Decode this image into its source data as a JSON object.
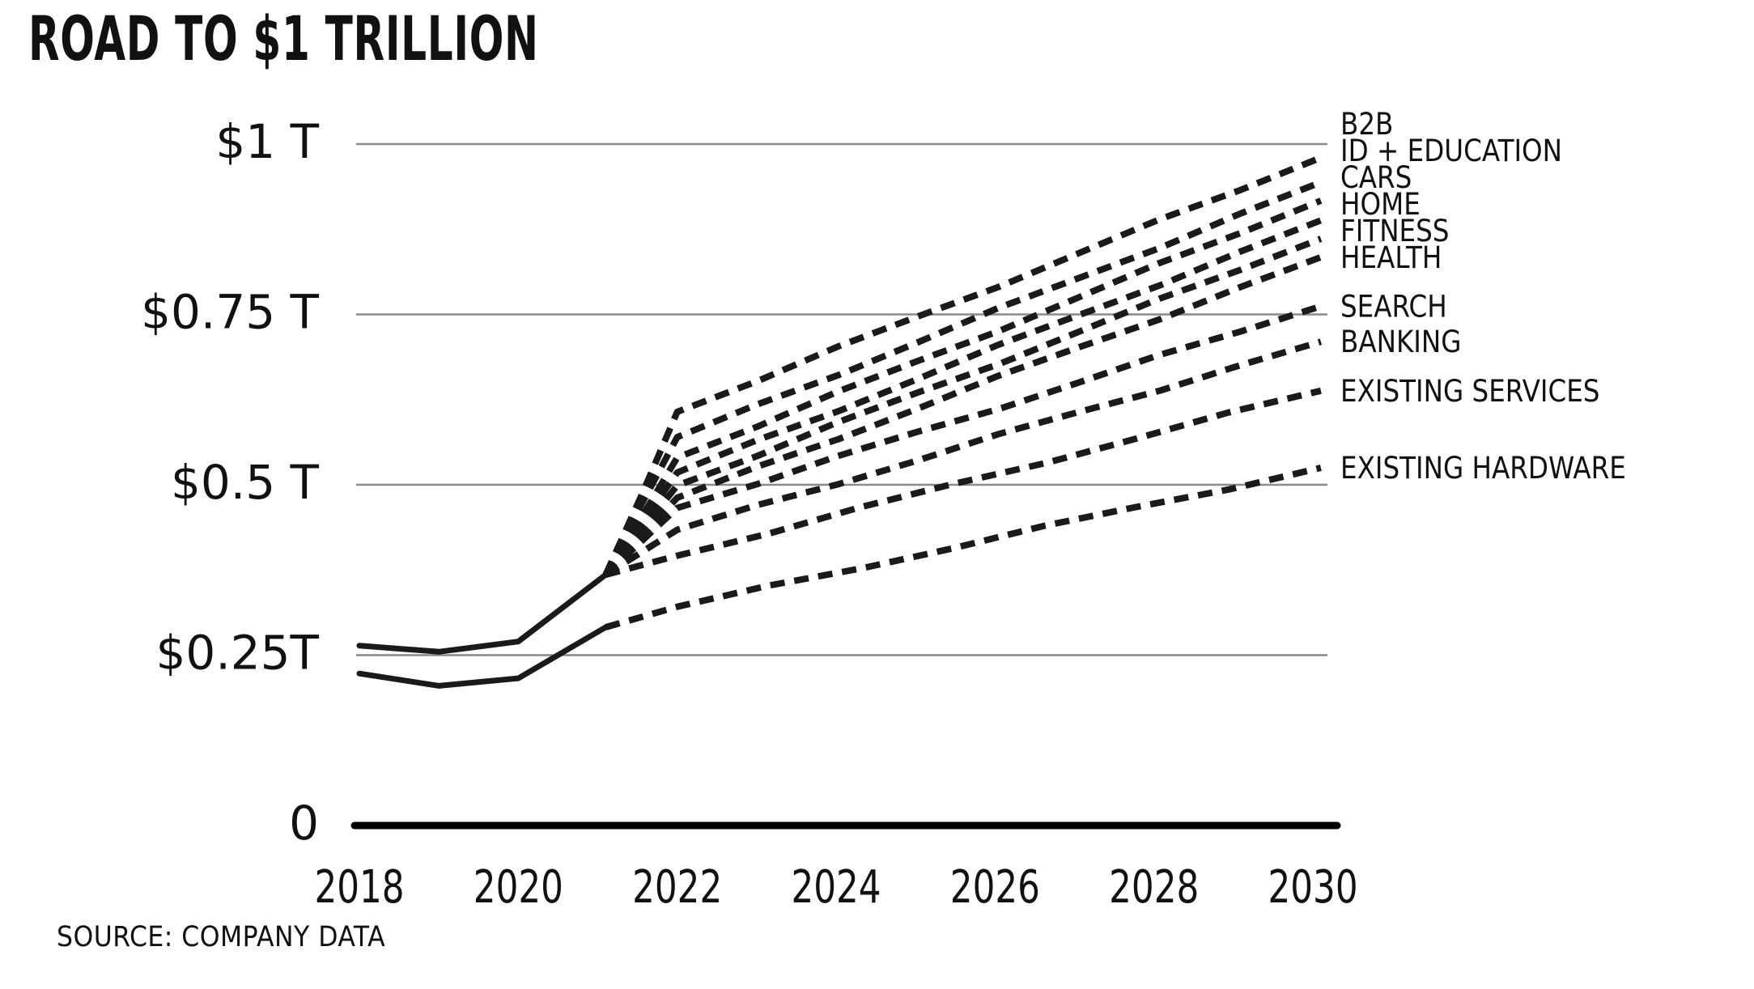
{
  "title": "ROAD TO $1 TRILLION",
  "source_note": "SOURCE: COMPANY DATA",
  "colors": {
    "background": "#ffffff",
    "ink": "#111111",
    "line": "#1a1a1a",
    "gridline": "#8a8a8a",
    "axis": "#000000"
  },
  "chart_data": {
    "type": "line",
    "title": "ROAD TO $1 TRILLION",
    "source": "SOURCE: COMPANY DATA",
    "xlabel": "",
    "ylabel": "",
    "units": "USD trillions",
    "xlim": [
      2017.4,
      2030.6
    ],
    "ylim": [
      0,
      1.06
    ],
    "grid": "horizontal-only",
    "legend_position": "right-of-line-ends",
    "x_ticks": [
      {
        "label": "2018",
        "value": 2018
      },
      {
        "label": "2020",
        "value": 2020
      },
      {
        "label": "2022",
        "value": 2022
      },
      {
        "label": "2024",
        "value": 2024
      },
      {
        "label": "2026",
        "value": 2026
      },
      {
        "label": "2028",
        "value": 2028
      },
      {
        "label": "2030",
        "value": 2030
      }
    ],
    "y_ticks": [
      {
        "label": "$1 T",
        "value": 1.0
      },
      {
        "label": "$0.75 T",
        "value": 0.75
      },
      {
        "label": "$0.5 T",
        "value": 0.5
      },
      {
        "label": "$0.25T",
        "value": 0.25
      },
      {
        "label": "0",
        "value": 0
      }
    ],
    "historical_series": [
      {
        "name": "total-history",
        "style": "solid",
        "x": [
          2018,
          2019,
          2020,
          2021.1
        ],
        "values": [
          0.264,
          0.255,
          0.27,
          0.368
        ]
      },
      {
        "name": "lower-history",
        "style": "solid",
        "x": [
          2018,
          2019,
          2020,
          2021.1
        ],
        "values": [
          0.223,
          0.205,
          0.216,
          0.291
        ]
      }
    ],
    "projection_series": [
      {
        "label": "B2B",
        "style": "dashed",
        "x": [
          2021.1,
          2022,
          2030.1
        ],
        "values": [
          0.368,
          0.607,
          0.98
        ]
      },
      {
        "label": "ID + EDUCATION",
        "style": "dashed",
        "x": [
          2021.1,
          2022,
          2030.1
        ],
        "values": [
          0.368,
          0.57,
          0.944
        ]
      },
      {
        "label": "CARS",
        "style": "dashed",
        "x": [
          2021.1,
          2022,
          2030.1
        ],
        "values": [
          0.368,
          0.54,
          0.917
        ]
      },
      {
        "label": "HOME",
        "style": "dashed",
        "x": [
          2021.1,
          2022,
          2030.1
        ],
        "values": [
          0.368,
          0.518,
          0.888
        ]
      },
      {
        "label": "FITNESS",
        "style": "dashed",
        "x": [
          2021.1,
          2022,
          2030.1
        ],
        "values": [
          0.368,
          0.499,
          0.861
        ]
      },
      {
        "label": "HEALTH",
        "style": "dashed",
        "x": [
          2021.1,
          2022,
          2030.1
        ],
        "values": [
          0.368,
          0.481,
          0.834
        ]
      },
      {
        "label": "SEARCH",
        "style": "dashed",
        "x": [
          2021.1,
          2022,
          2030.1
        ],
        "values": [
          0.368,
          0.466,
          0.762
        ]
      },
      {
        "label": "BANKING",
        "style": "dashed",
        "x": [
          2021.1,
          2022,
          2030.1
        ],
        "values": [
          0.368,
          0.434,
          0.71
        ]
      },
      {
        "label": "EXISTING SERVICES",
        "style": "dashed",
        "x": [
          2021.1,
          2022,
          2030.1
        ],
        "values": [
          0.368,
          0.396,
          0.638
        ]
      },
      {
        "label": "EXISTING HARDWARE",
        "style": "dashed",
        "x": [
          2021.1,
          2022,
          2030.1
        ],
        "values": [
          0.291,
          0.321,
          0.525
        ]
      }
    ]
  }
}
